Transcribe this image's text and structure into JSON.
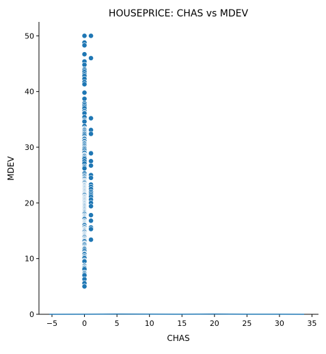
{
  "chart_data": {
    "type": "scatter",
    "title": "HOUSEPRICE: CHAS vs MDEV",
    "xlabel": "CHAS",
    "ylabel": "MDEV",
    "xlim": [
      -7,
      36
    ],
    "ylim": [
      0,
      52.5
    ],
    "xticks": [
      -5,
      0,
      5,
      10,
      15,
      20,
      25,
      30,
      35
    ],
    "yticks": [
      0,
      10,
      20,
      30,
      40,
      50
    ],
    "xtick_labels": [
      "−5",
      "0",
      "5",
      "10",
      "15",
      "20",
      "25",
      "30",
      "35"
    ],
    "ytick_labels": [
      "0",
      "10",
      "20",
      "30",
      "40",
      "50"
    ],
    "grid": false,
    "marker_color": "#1f77b4",
    "series": [
      {
        "x_value": 0,
        "y": [
          50,
          48.8,
          48.3,
          46.7,
          45.4,
          44.8,
          44,
          43.8,
          43.5,
          43.1,
          42.8,
          42.3,
          41.7,
          41.3,
          39.8,
          38.7,
          37.9,
          37.6,
          37.3,
          37,
          36.5,
          36.2,
          36.1,
          35.4,
          34.9,
          34.7,
          34.6,
          33.8,
          33.4,
          33.3,
          33.2,
          33.1,
          32.9,
          32.7,
          32.5,
          32.4,
          32.2,
          32,
          31.7,
          31.6,
          31.5,
          31.2,
          31.1,
          30.8,
          30.7,
          30.5,
          30.3,
          30.1,
          29.9,
          29.8,
          29.6,
          29.4,
          29.1,
          29,
          28.7,
          28.6,
          28.5,
          28.4,
          28.2,
          28.1,
          27.9,
          27.5,
          27.1,
          26.6,
          26.4,
          26.2,
          25.3,
          25,
          24.8,
          24.7,
          24.5,
          24.4,
          24.3,
          24.1,
          24,
          23.9,
          23.8,
          23.7,
          23.6,
          23.4,
          23.3,
          23.2,
          23.1,
          23,
          22.9,
          22.8,
          22.7,
          22.6,
          22.5,
          22.4,
          22.3,
          22.2,
          22.1,
          22,
          21.9,
          21.8,
          21.7,
          21.6,
          21.5,
          21.4,
          21.2,
          21.1,
          21,
          20.9,
          20.8,
          20.7,
          20.6,
          20.5,
          20.4,
          20.3,
          20.2,
          20.1,
          20,
          19.9,
          19.8,
          19.7,
          19.6,
          19.5,
          19.4,
          19.3,
          19.2,
          19.1,
          19,
          18.9,
          18.8,
          18.7,
          18.6,
          18.5,
          18.4,
          18.3,
          18.2,
          18.1,
          18,
          17.8,
          17.7,
          17.6,
          17.5,
          17.4,
          17.3,
          17.2,
          17.1,
          16.8,
          16.7,
          16.6,
          16.5,
          16.4,
          16.3,
          16.2,
          16.1,
          16,
          15.7,
          15.6,
          15.4,
          15.3,
          15.2,
          15.1,
          15,
          14.9,
          14.8,
          14.6,
          14.5,
          14.4,
          14.3,
          14.2,
          14.1,
          14,
          13.9,
          13.8,
          13.6,
          13.5,
          13.4,
          13.3,
          13.2,
          13.1,
          12.8,
          12.7,
          12.6,
          12.5,
          12.3,
          12.1,
          12,
          11.9,
          11.8,
          11.7,
          11.5,
          11.3,
          11,
          10.9,
          10.8,
          10.5,
          10.4,
          10.2,
          10.1,
          9.7,
          9.6,
          9.5,
          8.8,
          8.7,
          8.5,
          8.4,
          8.3,
          8.1,
          7.5,
          7.4,
          7.2,
          7.2,
          7,
          6.3,
          5.6,
          5.6,
          5,
          5
        ]
      },
      {
        "x_value": 1,
        "y": [
          50,
          46,
          35.2,
          33.1,
          32.4,
          29,
          28.9,
          27.5,
          26.7,
          25,
          24.5,
          23.3,
          22.9,
          22.5,
          22,
          21.7,
          21.4,
          21.1,
          20.6,
          20,
          19.4,
          17.8,
          16.8,
          15.6,
          15.3,
          13.4
        ]
      }
    ],
    "density_line": [
      [
        -5.4,
        0.0
      ],
      [
        0,
        0.02
      ],
      [
        5,
        0.05
      ],
      [
        10,
        0.03
      ],
      [
        15,
        0.02
      ],
      [
        20,
        0.05
      ],
      [
        25,
        0.02
      ],
      [
        30,
        0.01
      ],
      [
        33.8,
        0.0
      ]
    ]
  }
}
